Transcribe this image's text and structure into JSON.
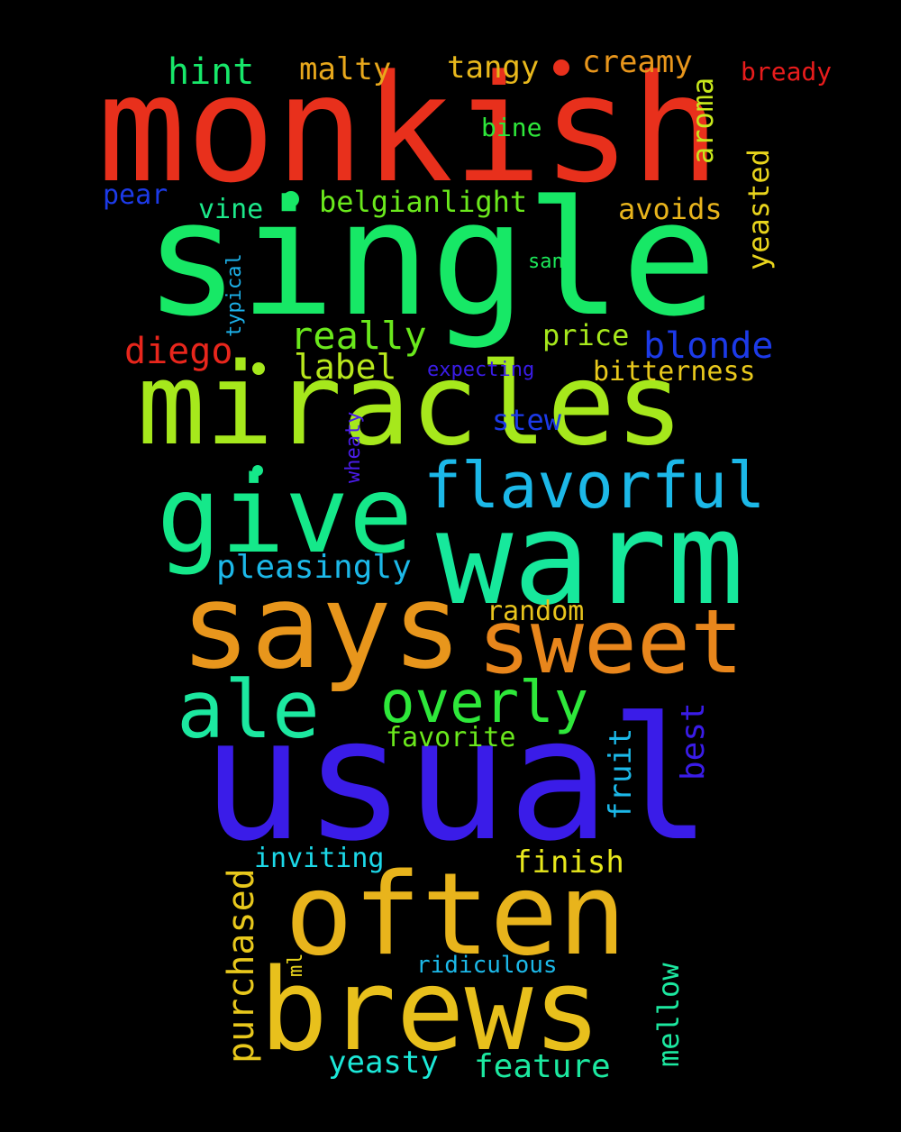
{
  "words": {
    "monkish": {
      "text": "monkish",
      "color": "#e8301c"
    },
    "single": {
      "text": "single",
      "color": "#17e866"
    },
    "miracles": {
      "text": "miracles",
      "color": "#a6e81c"
    },
    "give": {
      "text": "give",
      "color": "#15e88a"
    },
    "flavorful": {
      "text": "flavorful",
      "color": "#1cb8e8"
    },
    "warm": {
      "text": "warm",
      "color": "#17e89c"
    },
    "says": {
      "text": "says",
      "color": "#e8961c"
    },
    "sweet": {
      "text": "sweet",
      "color": "#e8861c"
    },
    "ale": {
      "text": "ale",
      "color": "#1ce8a0"
    },
    "overly": {
      "text": "overly",
      "color": "#2ee83a"
    },
    "usual": {
      "text": "usual",
      "color": "#3a1ce8"
    },
    "often": {
      "text": "often",
      "color": "#e8b41c"
    },
    "brews": {
      "text": "brews",
      "color": "#e8c01c"
    },
    "hint": {
      "text": "hint",
      "color": "#17e86a"
    },
    "malty": {
      "text": "malty",
      "color": "#e8a81c"
    },
    "tangy": {
      "text": "tangy",
      "color": "#e8b81c"
    },
    "creamy": {
      "text": "creamy",
      "color": "#e8961c"
    },
    "bready": {
      "text": "bready",
      "color": "#e81c1c"
    },
    "aroma": {
      "text": "aroma",
      "color": "#c8e81c"
    },
    "bine": {
      "text": "bine",
      "color": "#2ee83a"
    },
    "pear": {
      "text": "pear",
      "color": "#1c3ae8"
    },
    "vine": {
      "text": "vine",
      "color": "#1ce88a"
    },
    "belgianlight": {
      "text": "belgianlight",
      "color": "#6ae81c"
    },
    "avoids": {
      "text": "avoids",
      "color": "#e8b41c"
    },
    "yeasted": {
      "text": "yeasted",
      "color": "#e8d41c"
    },
    "typical": {
      "text": "typical",
      "color": "#1cb0e8"
    },
    "san": {
      "text": "san",
      "color": "#1ce85a"
    },
    "diego": {
      "text": "diego",
      "color": "#e8261c"
    },
    "really": {
      "text": "really",
      "color": "#6ae81c"
    },
    "price": {
      "text": "price",
      "color": "#a6e81c"
    },
    "blonde": {
      "text": "blonde",
      "color": "#1c3ae8"
    },
    "label": {
      "text": "label",
      "color": "#b8e81c"
    },
    "expecting": {
      "text": "expecting",
      "color": "#3a1ce8"
    },
    "bitterness": {
      "text": "bitterness",
      "color": "#e8c81c"
    },
    "stew": {
      "text": "stew",
      "color": "#1c3ae8"
    },
    "wheaty": {
      "text": "wheaty",
      "color": "#4a1ce8"
    },
    "pleasingly": {
      "text": "pleasingly",
      "color": "#1cb8e8"
    },
    "random": {
      "text": "random",
      "color": "#e8c41c"
    },
    "best": {
      "text": "best",
      "color": "#3a1ce8"
    },
    "favorite": {
      "text": "favorite",
      "color": "#6ae81c"
    },
    "fruit": {
      "text": "fruit",
      "color": "#1cb8e8"
    },
    "inviting": {
      "text": "inviting",
      "color": "#1cd8e8"
    },
    "finish": {
      "text": "finish",
      "color": "#e8e81c"
    },
    "purchased": {
      "text": "purchased",
      "color": "#e8c81c"
    },
    "ml": {
      "text": "ml",
      "color": "#e8d41c"
    },
    "ridiculous": {
      "text": "ridiculous",
      "color": "#1cb8e8"
    },
    "mellow": {
      "text": "mellow",
      "color": "#1ce8a0"
    },
    "yeasty": {
      "text": "yeasty",
      "color": "#1ce8d8"
    },
    "feature": {
      "text": "feature",
      "color": "#1ce8a0"
    }
  }
}
